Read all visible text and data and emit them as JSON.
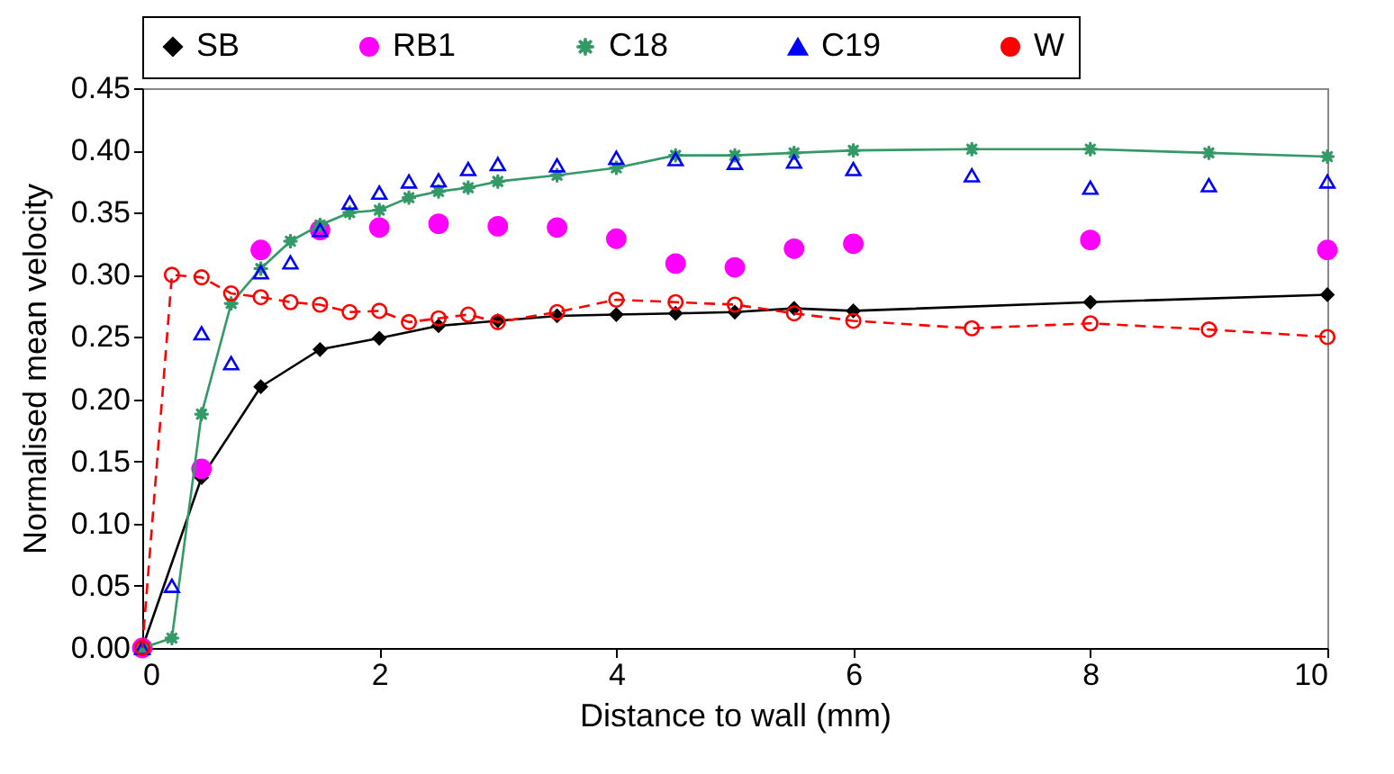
{
  "chart_data": {
    "type": "line",
    "xlabel": "Distance to wall (mm)",
    "ylabel": "Normalised  mean velocity",
    "xlim": [
      0,
      10
    ],
    "xticks": [
      0,
      2,
      4,
      6,
      8,
      10
    ],
    "ylim": [
      0,
      0.45
    ],
    "yticks": [
      {
        "value": 0,
        "label": "0.00"
      },
      {
        "value": 0.05,
        "label": "0.05"
      },
      {
        "value": 0.1,
        "label": "0.10"
      },
      {
        "value": 0.15,
        "label": "0.15"
      },
      {
        "value": 0.2,
        "label": "0.20"
      },
      {
        "value": 0.25,
        "label": "0.25"
      },
      {
        "value": 0.3,
        "label": "0.30"
      },
      {
        "value": 0.35,
        "label": "0.35"
      },
      {
        "value": 0.4,
        "label": "0.40"
      },
      {
        "value": 0.45,
        "label": "0.45"
      }
    ],
    "grid": false,
    "legend": "top",
    "series": [
      {
        "name": "SB",
        "color": "#000000",
        "marker": "diamond",
        "line_style": "solid",
        "x": [
          0,
          0.5,
          1,
          1.5,
          2,
          2.5,
          3,
          3.5,
          4,
          4.5,
          5,
          5.5,
          6,
          8,
          10
        ],
        "values": [
          0,
          0.137,
          0.21,
          0.24,
          0.249,
          0.259,
          0.263,
          0.267,
          0.268,
          0.269,
          0.27,
          0.273,
          0.271,
          0.278,
          0.284
        ]
      },
      {
        "name": "RB1",
        "type": "scatter",
        "color": "#ff00ff",
        "marker": "circle",
        "x": [
          0,
          0.5,
          1,
          1.5,
          2,
          2.5,
          3,
          3.5,
          4,
          4.5,
          5,
          5.5,
          6,
          8,
          10
        ],
        "values": [
          0,
          0.144,
          0.32,
          0.336,
          0.338,
          0.341,
          0.339,
          0.338,
          0.329,
          0.309,
          0.306,
          0.321,
          0.325,
          0.328,
          0.32
        ]
      },
      {
        "name": "C18",
        "color": "#339966",
        "marker": "star",
        "line_style": "solid",
        "x": [
          0,
          0.25,
          0.5,
          0.75,
          1,
          1.25,
          1.5,
          1.75,
          2,
          2.25,
          2.5,
          2.75,
          3,
          3.5,
          4,
          4.5,
          5,
          5.5,
          6,
          7,
          8,
          9,
          10
        ],
        "values": [
          0,
          0.008,
          0.188,
          0.277,
          0.305,
          0.327,
          0.34,
          0.35,
          0.352,
          0.362,
          0.367,
          0.37,
          0.375,
          0.38,
          0.386,
          0.396,
          0.396,
          0.398,
          0.4,
          0.401,
          0.401,
          0.398,
          0.395
        ]
      },
      {
        "name": "C19",
        "type": "scatter",
        "color": "#0000ff",
        "marker": "triangle",
        "x": [
          0,
          0.25,
          0.5,
          0.75,
          1,
          1.25,
          1.5,
          1.75,
          2,
          2.25,
          2.5,
          2.75,
          3,
          3.5,
          4,
          4.5,
          5,
          5.5,
          6,
          7,
          8,
          9,
          10
        ],
        "values": [
          0,
          0.05,
          0.253,
          0.229,
          0.302,
          0.31,
          0.336,
          0.358,
          0.366,
          0.375,
          0.376,
          0.385,
          0.389,
          0.388,
          0.394,
          0.393,
          0.39,
          0.391,
          0.385,
          0.38,
          0.37,
          0.372,
          0.375
        ]
      },
      {
        "name": "W",
        "color": "#ff0000",
        "marker": "circle",
        "line_style": "dashed",
        "x": [
          0,
          0.25,
          0.5,
          0.75,
          1,
          1.25,
          1.5,
          1.75,
          2,
          2.25,
          2.5,
          2.75,
          3,
          3.5,
          4,
          4.5,
          5,
          5.5,
          6,
          7,
          8,
          9,
          10
        ],
        "values": [
          0,
          0.3,
          0.298,
          0.285,
          0.282,
          0.278,
          0.276,
          0.27,
          0.271,
          0.262,
          0.265,
          0.268,
          0.262,
          0.27,
          0.28,
          0.278,
          0.276,
          0.269,
          0.263,
          0.257,
          0.261,
          0.256,
          0.25
        ]
      }
    ]
  }
}
